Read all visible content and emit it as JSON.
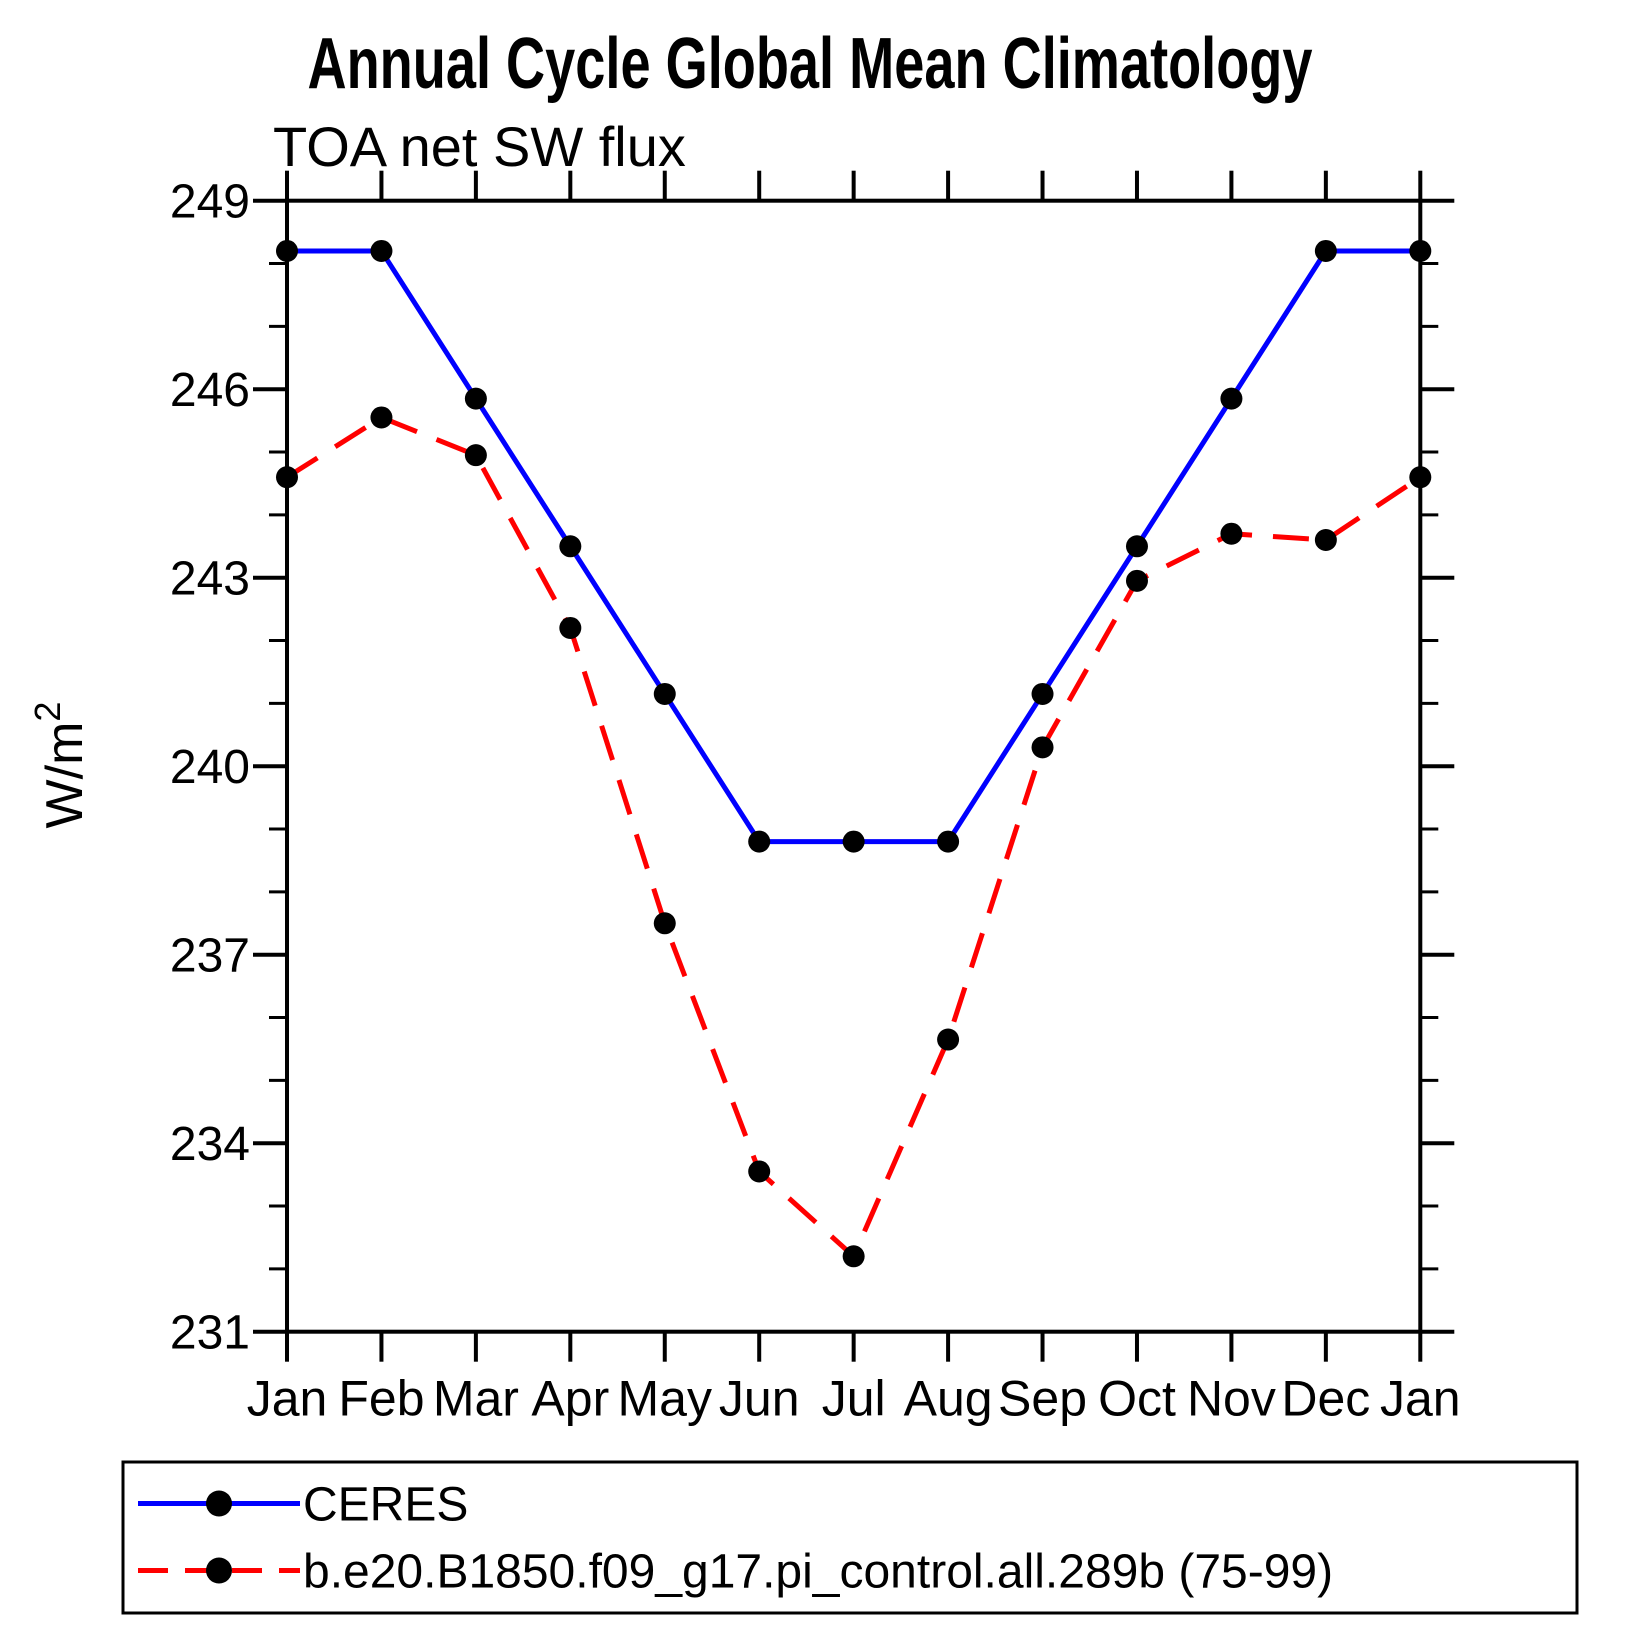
{
  "title": "Annual Cycle Global Mean Climatology",
  "subtitle": "TOA net SW flux",
  "ylabel": "W/m²",
  "colors": {
    "ceres_line": "#0000ff",
    "model_line": "#ff0000",
    "marker": "#000000",
    "axis": "#000000",
    "text": "#1a1a1a"
  },
  "chart_data": {
    "type": "line",
    "title": "TOA net SW flux",
    "xlabel": "",
    "ylabel": "W/m²",
    "categories": [
      "Jan",
      "Feb",
      "Mar",
      "Apr",
      "May",
      "Jun",
      "Jul",
      "Aug",
      "Sep",
      "Oct",
      "Nov",
      "Dec",
      "Jan"
    ],
    "series": [
      {
        "name": "CERES",
        "style": "solid",
        "color": "#0000ff",
        "values": [
          248.2,
          248.2,
          245.85,
          243.5,
          241.15,
          238.8,
          238.8,
          238.8,
          241.15,
          243.5,
          245.85,
          248.2,
          248.2
        ]
      },
      {
        "name": "b.e20.B1850.f09_g17.pi_control.all.289b (75-99)",
        "style": "dashed",
        "color": "#ff0000",
        "values": [
          244.6,
          245.55,
          244.95,
          242.2,
          237.5,
          233.55,
          232.2,
          235.65,
          240.3,
          242.95,
          243.7,
          243.6,
          244.6
        ]
      }
    ],
    "ylim": [
      231,
      249
    ],
    "yticks": [
      231,
      234,
      237,
      240,
      243,
      246,
      249
    ],
    "minor_tick_interval": 1,
    "grid": false,
    "legend_position": "bottom"
  }
}
